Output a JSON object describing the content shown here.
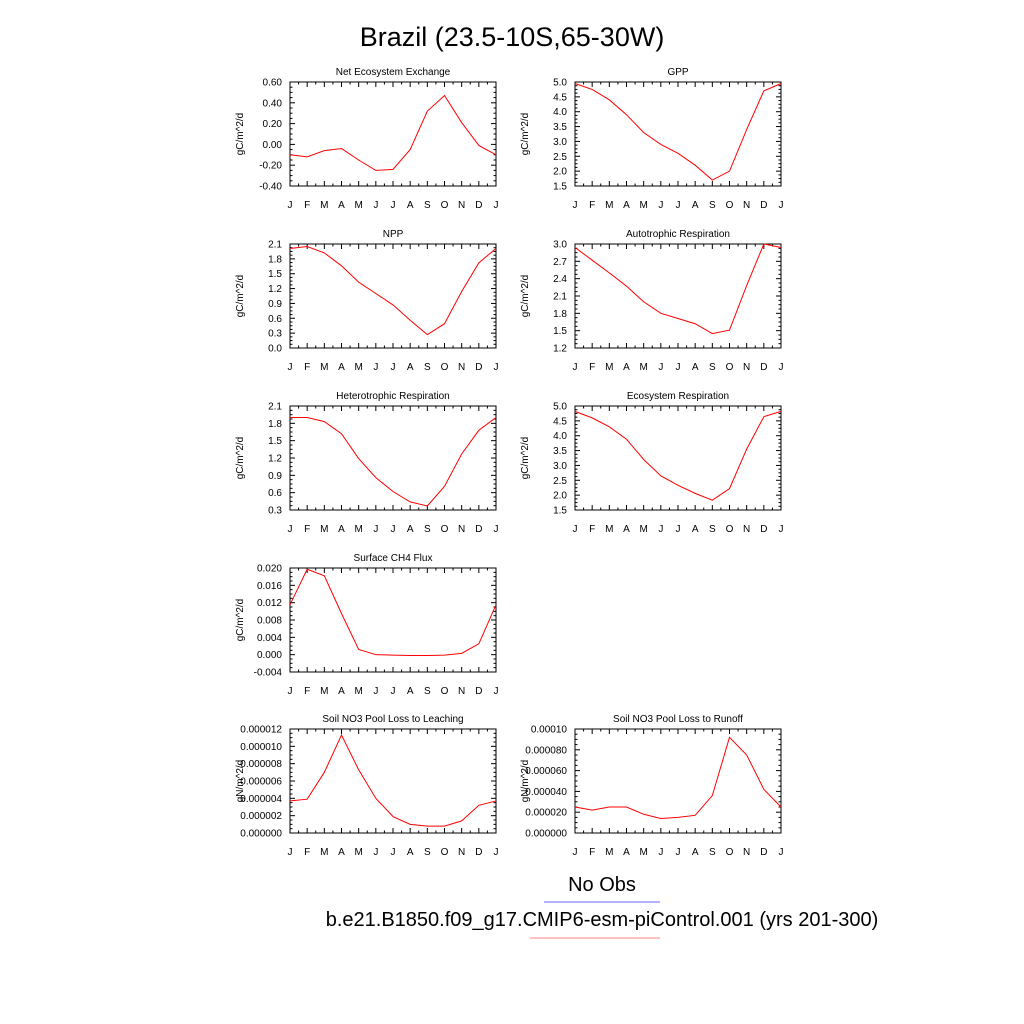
{
  "title": "Brazil (23.5-10S,65-30W)",
  "legend": {
    "items": [
      {
        "label": "No Obs",
        "color": "#6666ff"
      },
      {
        "label": "b.e21.B1850.f09_g17.CMIP6-esm-piControl.001 (yrs 201-300)",
        "color": "#ff0000"
      }
    ]
  },
  "chart_data": [
    {
      "type": "line",
      "title": "Net Ecosystem Exchange",
      "ylabel": "gC/m^2/d",
      "x": [
        "J",
        "F",
        "M",
        "A",
        "M",
        "J",
        "J",
        "A",
        "S",
        "O",
        "N",
        "D",
        "J"
      ],
      "ylim": [
        -0.4,
        0.6
      ],
      "yticks": [
        "0.60",
        "0.40",
        "0.20",
        "0.00",
        "-0.20",
        "-0.40"
      ],
      "series": [
        {
          "color": "#ff0000",
          "values": [
            -0.1,
            -0.12,
            -0.06,
            -0.04,
            -0.15,
            -0.25,
            -0.24,
            -0.05,
            0.32,
            0.47,
            0.21,
            -0.01,
            -0.1
          ]
        }
      ]
    },
    {
      "type": "line",
      "title": "GPP",
      "ylabel": "gC/m^2/d",
      "x": [
        "J",
        "F",
        "M",
        "A",
        "M",
        "J",
        "J",
        "A",
        "S",
        "O",
        "N",
        "D",
        "J"
      ],
      "ylim": [
        1.5,
        5.0
      ],
      "yticks": [
        "5.0",
        "4.5",
        "4.0",
        "3.5",
        "3.0",
        "2.5",
        "2.0",
        "1.5"
      ],
      "series": [
        {
          "color": "#ff0000",
          "values": [
            4.95,
            4.75,
            4.4,
            3.9,
            3.3,
            2.9,
            2.6,
            2.2,
            1.7,
            2.0,
            3.4,
            4.7,
            4.95
          ]
        }
      ]
    },
    {
      "type": "line",
      "title": "NPP",
      "ylabel": "gC/m^2/d",
      "x": [
        "J",
        "F",
        "M",
        "A",
        "M",
        "J",
        "J",
        "A",
        "S",
        "O",
        "N",
        "D",
        "J"
      ],
      "ylim": [
        0.0,
        2.1
      ],
      "yticks": [
        "2.1",
        "1.8",
        "1.5",
        "1.2",
        "0.9",
        "0.6",
        "0.3",
        "0.0"
      ],
      "series": [
        {
          "color": "#ff0000",
          "values": [
            2.01,
            2.05,
            1.92,
            1.66,
            1.33,
            1.1,
            0.87,
            0.56,
            0.27,
            0.49,
            1.14,
            1.72,
            2.01
          ]
        }
      ]
    },
    {
      "type": "line",
      "title": "Autotrophic Respiration",
      "ylabel": "gC/m^2/d",
      "x": [
        "J",
        "F",
        "M",
        "A",
        "M",
        "J",
        "J",
        "A",
        "S",
        "O",
        "N",
        "D",
        "J"
      ],
      "ylim": [
        1.2,
        3.0
      ],
      "yticks": [
        "3.0",
        "2.7",
        "2.4",
        "2.1",
        "1.8",
        "1.5",
        "1.2"
      ],
      "series": [
        {
          "color": "#ff0000",
          "values": [
            2.94,
            2.72,
            2.5,
            2.27,
            2.0,
            1.8,
            1.71,
            1.62,
            1.45,
            1.51,
            2.28,
            3.0,
            2.94
          ]
        }
      ]
    },
    {
      "type": "line",
      "title": "Heterotrophic Respiration",
      "ylabel": "gC/m^2/d",
      "x": [
        "J",
        "F",
        "M",
        "A",
        "M",
        "J",
        "J",
        "A",
        "S",
        "O",
        "N",
        "D",
        "J"
      ],
      "ylim": [
        0.3,
        2.1
      ],
      "yticks": [
        "2.1",
        "1.8",
        "1.5",
        "1.2",
        "0.9",
        "0.6",
        "0.3"
      ],
      "series": [
        {
          "color": "#ff0000",
          "values": [
            1.9,
            1.9,
            1.83,
            1.62,
            1.19,
            0.86,
            0.62,
            0.44,
            0.37,
            0.71,
            1.27,
            1.68,
            1.9
          ]
        }
      ]
    },
    {
      "type": "line",
      "title": "Ecosystem Respiration",
      "ylabel": "gC/m^2/d",
      "x": [
        "J",
        "F",
        "M",
        "A",
        "M",
        "J",
        "J",
        "A",
        "S",
        "O",
        "N",
        "D",
        "J"
      ],
      "ylim": [
        1.5,
        5.0
      ],
      "yticks": [
        "5.0",
        "4.5",
        "4.0",
        "3.5",
        "3.0",
        "2.5",
        "2.0",
        "1.5"
      ],
      "series": [
        {
          "color": "#ff0000",
          "values": [
            4.82,
            4.6,
            4.3,
            3.88,
            3.2,
            2.65,
            2.33,
            2.06,
            1.83,
            2.22,
            3.55,
            4.64,
            4.82
          ]
        }
      ]
    },
    {
      "type": "line",
      "title": "Surface CH4 Flux",
      "ylabel": "gC/m^2/d",
      "x": [
        "J",
        "F",
        "M",
        "A",
        "M",
        "J",
        "J",
        "A",
        "S",
        "O",
        "N",
        "D",
        "J"
      ],
      "ylim": [
        -0.004,
        0.02
      ],
      "yticks": [
        "0.020",
        "0.016",
        "0.012",
        "0.008",
        "0.004",
        "0.000",
        "-0.004"
      ],
      "series": [
        {
          "color": "#ff0000",
          "values": [
            0.0115,
            0.0197,
            0.0182,
            0.0095,
            0.0012,
            0.0,
            -0.0001,
            -0.0002,
            -0.0002,
            -0.0001,
            0.0003,
            0.0025,
            0.0115
          ]
        }
      ]
    },
    {
      "type": "line",
      "title": "Soil NO3 Pool Loss to Leaching",
      "ylabel": "gN/m^2/d",
      "x": [
        "J",
        "F",
        "M",
        "A",
        "M",
        "J",
        "J",
        "A",
        "S",
        "O",
        "N",
        "D",
        "J"
      ],
      "ylim": [
        0.0,
        1.2e-05
      ],
      "yticks": [
        "0.000012",
        "0.000010",
        "0.000008",
        "0.000006",
        "0.000004",
        "0.000002",
        "0.000000"
      ],
      "series": [
        {
          "color": "#ff0000",
          "values": [
            3.7e-06,
            3.9e-06,
            7e-06,
            1.13e-05,
            7.3e-06,
            4e-06,
            1.9e-06,
            1e-06,
            8e-07,
            8e-07,
            1.4e-06,
            3.2e-06,
            3.7e-06
          ]
        }
      ]
    },
    {
      "type": "line",
      "title": "Soil NO3 Pool Loss to Runoff",
      "ylabel": "gN/m^2/d",
      "x": [
        "J",
        "F",
        "M",
        "A",
        "M",
        "J",
        "J",
        "A",
        "S",
        "O",
        "N",
        "D",
        "J"
      ],
      "ylim": [
        0.0,
        0.0001
      ],
      "yticks": [
        "0.00010",
        "0.000080",
        "0.000060",
        "0.000040",
        "0.000020",
        "0.000000"
      ],
      "series": [
        {
          "color": "#ff0000",
          "values": [
            2.5e-05,
            2.2e-05,
            2.5e-05,
            2.5e-05,
            1.8e-05,
            1.4e-05,
            1.5e-05,
            1.7e-05,
            3.6e-05,
            9.2e-05,
            7.5e-05,
            4.2e-05,
            2.5e-05
          ]
        }
      ]
    }
  ]
}
